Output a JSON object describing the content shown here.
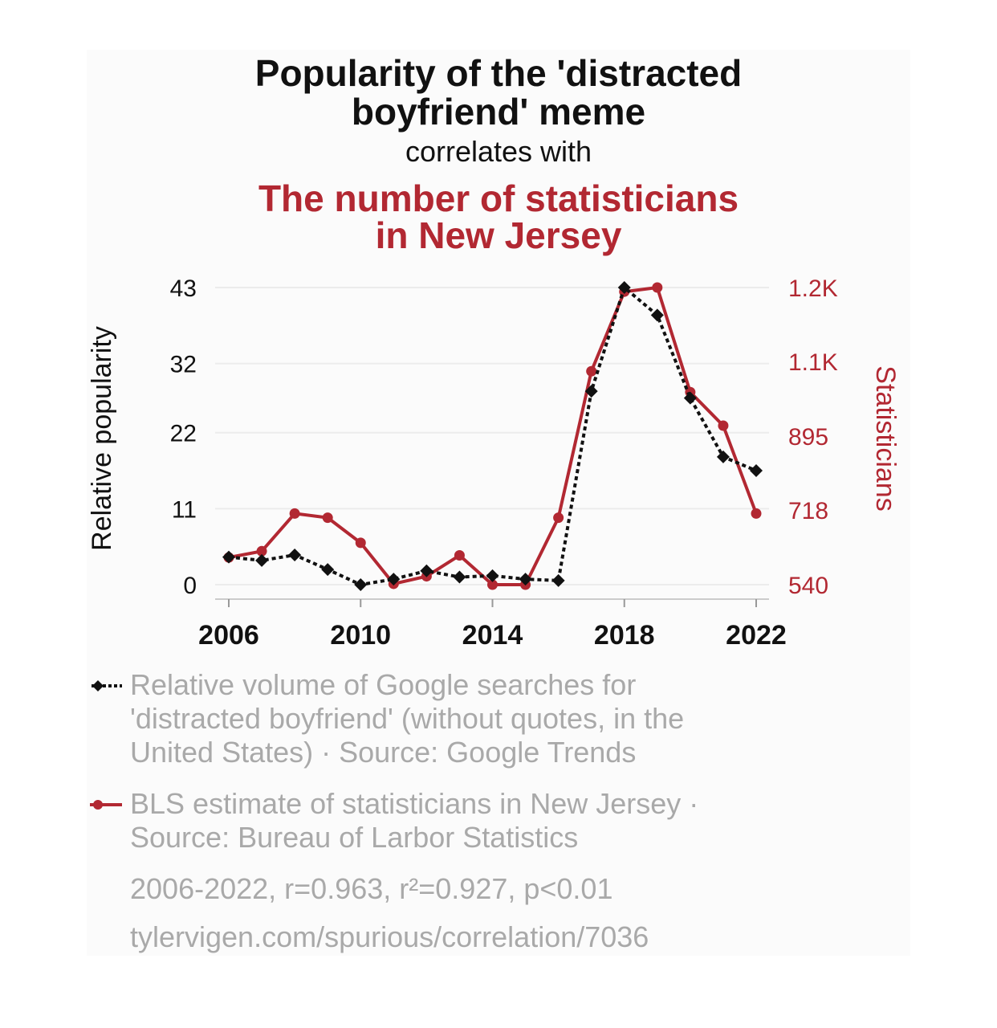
{
  "title": {
    "line1": "Popularity of the 'distracted",
    "line2": "boyfriend' meme",
    "connector": "correlates with",
    "line3": "The number of statisticians",
    "line4": "in New Jersey"
  },
  "chart_data": {
    "type": "line",
    "x": [
      2006,
      2007,
      2008,
      2009,
      2010,
      2011,
      2012,
      2013,
      2014,
      2015,
      2016,
      2017,
      2018,
      2019,
      2020,
      2021,
      2022
    ],
    "x_ticks": [
      "2006",
      "2010",
      "2014",
      "2018",
      "2022"
    ],
    "xlim": [
      2006,
      2022
    ],
    "left_axis": {
      "label": "Relative popularity",
      "ticks": [
        {
          "value": 0,
          "label": "0"
        },
        {
          "value": 11,
          "label": "11"
        },
        {
          "value": 22,
          "label": "22"
        },
        {
          "value": 32,
          "label": "32"
        },
        {
          "value": 43,
          "label": "43"
        }
      ],
      "ylim": [
        0,
        43
      ]
    },
    "right_axis": {
      "label": "Statisticians",
      "ticks": [
        {
          "value": 540,
          "label": "540"
        },
        {
          "value": 718,
          "label": "718"
        },
        {
          "value": 895,
          "label": "895"
        },
        {
          "value": 1073,
          "label": "1.1K"
        },
        {
          "value": 1250,
          "label": "1.2K"
        }
      ],
      "ylim": [
        540,
        1250
      ]
    },
    "series": [
      {
        "axis": "left",
        "color": "#111111",
        "style": "dotted-diamond",
        "values": [
          4,
          3.5,
          4.3,
          2.2,
          0,
          0.8,
          2,
          1.1,
          1.3,
          0.8,
          0.6,
          28,
          43,
          39,
          27,
          18.5,
          16.5
        ]
      },
      {
        "axis": "right",
        "color": "#b22832",
        "style": "solid-circle",
        "values": [
          605,
          620,
          710,
          700,
          640,
          542,
          560,
          610,
          540,
          540,
          700,
          1050,
          1240,
          1250,
          1000,
          920,
          710
        ]
      }
    ],
    "grid": true
  },
  "legend": [
    {
      "text": "Relative volume of Google searches for 'distracted boyfriend' (without quotes, in the United States) · Source: Google Trends"
    },
    {
      "text": "BLS estimate of statisticians in New Jersey · Source: Bureau of Larbor Statistics"
    }
  ],
  "stats": "2006-2022, r=0.963, r²=0.927, p<0.01",
  "source_url": "tylervigen.com/spurious/correlation/7036",
  "colors": {
    "left_series": "#111111",
    "right_series": "#b22832",
    "legend_text": "#a9a9a9"
  }
}
